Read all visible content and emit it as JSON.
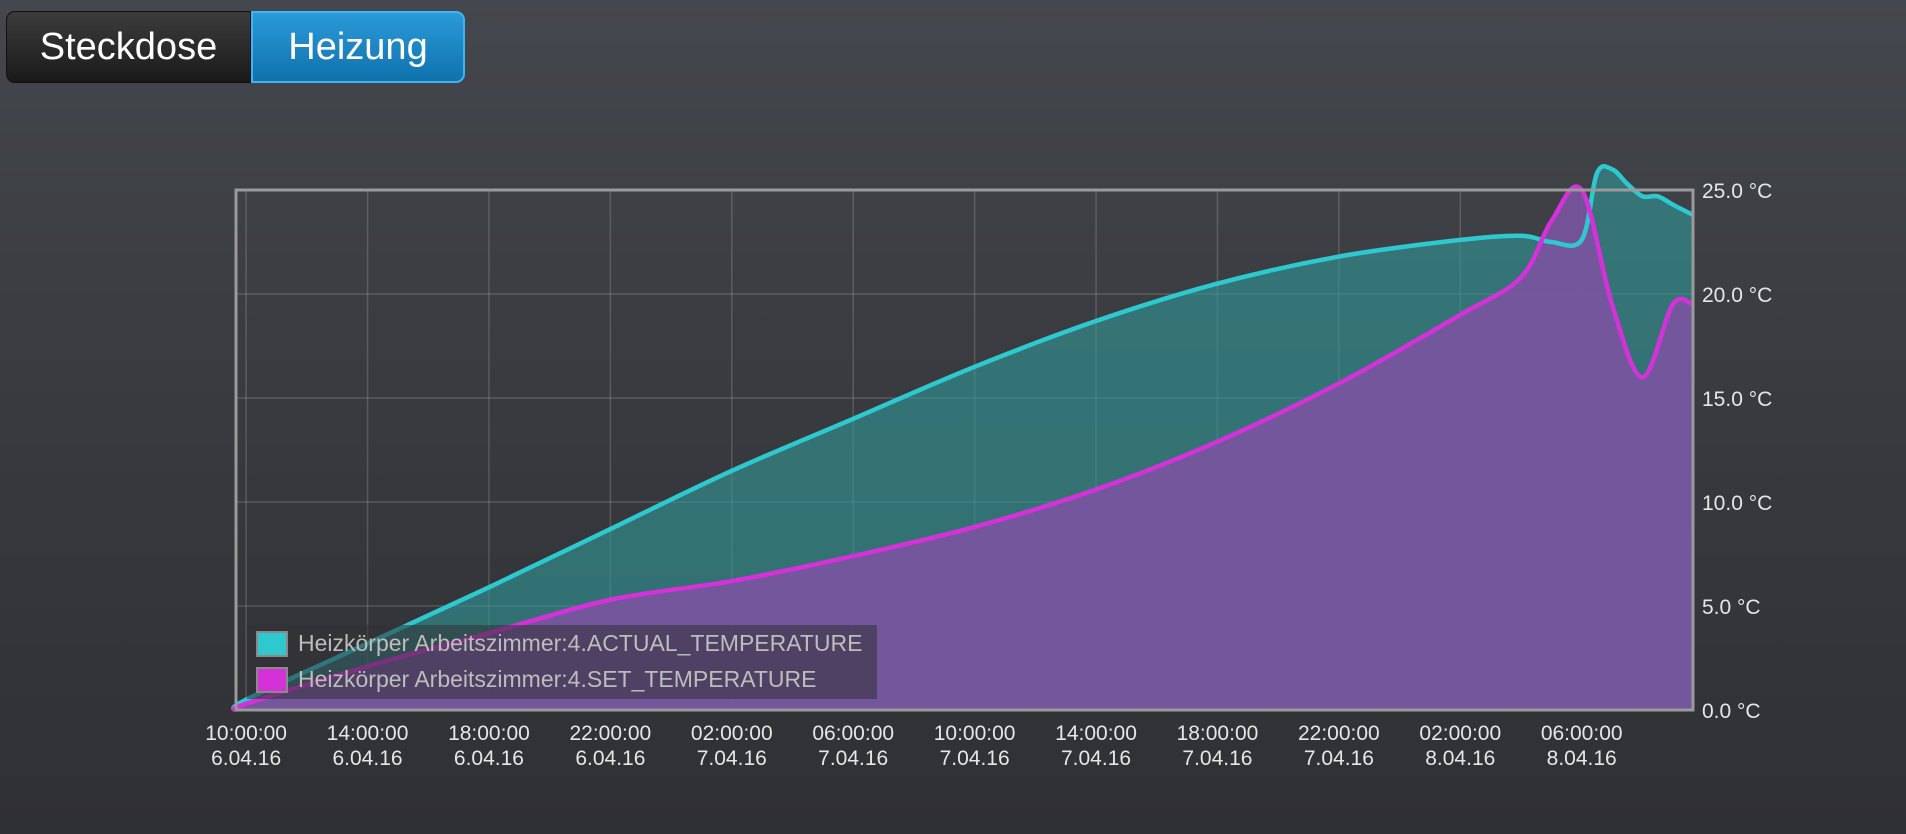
{
  "tabs": [
    {
      "label": "Steckdose",
      "active": false
    },
    {
      "label": "Heizung",
      "active": true
    }
  ],
  "chart_data": {
    "type": "area",
    "title": "",
    "ylim": [
      0,
      25
    ],
    "y_ticks": [
      "0.0 °C",
      "5.0 °C",
      "10.0 °C",
      "15.0 °C",
      "20.0 °C",
      "25.0 °C"
    ],
    "x_ticks": [
      {
        "time": "10:00:00",
        "date": "6.04.16"
      },
      {
        "time": "14:00:00",
        "date": "6.04.16"
      },
      {
        "time": "18:00:00",
        "date": "6.04.16"
      },
      {
        "time": "22:00:00",
        "date": "6.04.16"
      },
      {
        "time": "02:00:00",
        "date": "7.04.16"
      },
      {
        "time": "06:00:00",
        "date": "7.04.16"
      },
      {
        "time": "10:00:00",
        "date": "7.04.16"
      },
      {
        "time": "14:00:00",
        "date": "7.04.16"
      },
      {
        "time": "18:00:00",
        "date": "7.04.16"
      },
      {
        "time": "22:00:00",
        "date": "7.04.16"
      },
      {
        "time": "02:00:00",
        "date": "8.04.16"
      },
      {
        "time": "06:00:00",
        "date": "8.04.16"
      }
    ],
    "grid": true,
    "legend_position": "bottom-left",
    "series": [
      {
        "name": "Heizkörper Arbeitszimmer:4.ACTUAL_TEMPERATURE",
        "color": "#2ec9cf",
        "fill": "rgba(50,150,150,0.62)",
        "x": [
          "2016-04-06 09:40",
          "2016-04-06 10:00",
          "2016-04-06 14:00",
          "2016-04-06 18:00",
          "2016-04-06 22:00",
          "2016-04-07 02:00",
          "2016-04-07 06:00",
          "2016-04-07 10:00",
          "2016-04-07 14:00",
          "2016-04-07 18:00",
          "2016-04-07 22:00",
          "2016-04-08 02:00",
          "2016-04-08 04:00",
          "2016-04-08 05:00",
          "2016-04-08 06:00",
          "2016-04-08 06:30",
          "2016-04-08 07:00",
          "2016-04-08 07:30",
          "2016-04-08 08:00",
          "2016-04-08 08:30",
          "2016-04-08 09:00",
          "2016-04-08 09:40"
        ],
        "y": [
          0.0,
          0.5,
          3.2,
          5.9,
          8.7,
          11.5,
          14.0,
          16.5,
          18.7,
          20.5,
          21.8,
          22.6,
          22.8,
          22.5,
          22.6,
          25.8,
          26.0,
          25.3,
          24.7,
          24.7,
          24.3,
          23.8
        ]
      },
      {
        "name": "Heizkörper Arbeitszimmer:4.SET_TEMPERATURE",
        "color": "#d531d8",
        "fill": "rgba(120,84,158,0.92)",
        "x": [
          "2016-04-06 09:40",
          "2016-04-06 10:00",
          "2016-04-06 14:00",
          "2016-04-06 18:00",
          "2016-04-06 22:00",
          "2016-04-07 02:00",
          "2016-04-07 06:00",
          "2016-04-07 10:00",
          "2016-04-07 14:00",
          "2016-04-07 18:00",
          "2016-04-07 22:00",
          "2016-04-08 02:00",
          "2016-04-08 04:00",
          "2016-04-08 05:00",
          "2016-04-08 06:00",
          "2016-04-08 07:00",
          "2016-04-08 08:00",
          "2016-04-08 09:00",
          "2016-04-08 09:40"
        ],
        "y": [
          0.0,
          0.3,
          2.1,
          3.7,
          5.3,
          6.2,
          7.4,
          8.8,
          10.6,
          12.9,
          15.7,
          19.0,
          20.8,
          23.5,
          25.0,
          19.5,
          16.0,
          19.5,
          19.5
        ]
      }
    ]
  }
}
